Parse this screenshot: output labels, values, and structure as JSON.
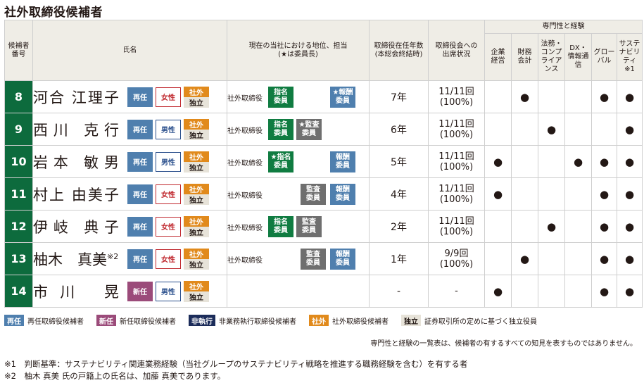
{
  "title": "社外取締役候補者",
  "headers": {
    "number": "候補者\n番号",
    "name": "氏名",
    "position": "現在の当社における地位、担当\n(★は委員長)",
    "years": "取締役在任年数\n(本総会終結時)",
    "attendance": "取締役会への\n出席状況",
    "expertise_title": "専門性と経験",
    "expertise": [
      "企業\n経営",
      "財務\n会計",
      "法務・\nコンプ\nライア\nンス",
      "DX・\n情報通信",
      "グロー\nバル",
      "サステ\nナビリ\nティ\n※1"
    ]
  },
  "candidates": [
    {
      "no": "8",
      "name": "河合　江理子",
      "sup": "",
      "tenure": "再任",
      "gender": "女性",
      "gender_type": "female",
      "tag_top": "社外",
      "tag_bottom": "独立",
      "position": "社外取締役",
      "committee_a": "指名\n委員",
      "committee_a_style": "green",
      "committee_b": "★報酬\n委員",
      "committee_b_style": "blue",
      "years": "7年",
      "attendance": "11/11回\n(100%)",
      "exp": [
        "",
        "●",
        "",
        "",
        "●",
        "●"
      ]
    },
    {
      "no": "9",
      "name": "西川　克行",
      "sup": "",
      "tenure": "再任",
      "gender": "男性",
      "gender_type": "male",
      "tag_top": "社外",
      "tag_bottom": "独立",
      "position": "社外取締役",
      "committee_a": "指名\n委員",
      "committee_a_style": "green",
      "committee_b": "★監査\n委員",
      "committee_b_style": "gray",
      "years": "6年",
      "attendance": "11/11回\n(100%)",
      "exp": [
        "",
        "",
        "●",
        "",
        "",
        "●"
      ]
    },
    {
      "no": "10",
      "name": "岩本　敏男",
      "sup": "",
      "tenure": "再任",
      "gender": "男性",
      "gender_type": "male",
      "tag_top": "社外",
      "tag_bottom": "独立",
      "position": "社外取締役",
      "committee_a": "★指名\n委員",
      "committee_a_style": "green",
      "committee_b": "報酬\n委員",
      "committee_b_style": "blue",
      "years": "5年",
      "attendance": "11/11回\n(100%)",
      "exp": [
        "●",
        "",
        "",
        "●",
        "●",
        "●"
      ]
    },
    {
      "no": "11",
      "name": "村上　由美子",
      "sup": "",
      "tenure": "再任",
      "gender": "女性",
      "gender_type": "female",
      "tag_top": "社外",
      "tag_bottom": "独立",
      "position": "社外取締役",
      "committee_a": "監査\n委員",
      "committee_a_style": "gray",
      "committee_b": "報酬\n委員",
      "committee_b_style": "blue",
      "years": "4年",
      "attendance": "11/11回\n(100%)",
      "exp": [
        "●",
        "",
        "",
        "",
        "●",
        "●"
      ]
    },
    {
      "no": "12",
      "name": "伊岐　典子",
      "sup": "",
      "tenure": "再任",
      "gender": "女性",
      "gender_type": "female",
      "tag_top": "社外",
      "tag_bottom": "独立",
      "position": "社外取締役",
      "committee_a": "指名\n委員",
      "committee_a_style": "green",
      "committee_b": "監査\n委員",
      "committee_b_style": "gray",
      "years": "2年",
      "attendance": "11/11回\n(100%)",
      "exp": [
        "",
        "",
        "●",
        "",
        "●",
        "●"
      ]
    },
    {
      "no": "13",
      "name": "柚木　真美",
      "sup": "※2",
      "tenure": "再任",
      "gender": "女性",
      "gender_type": "female",
      "tag_top": "社外",
      "tag_bottom": "独立",
      "position": "社外取締役",
      "committee_a": "監査\n委員",
      "committee_a_style": "gray",
      "committee_b": "報酬\n委員",
      "committee_b_style": "blue",
      "years": "1年",
      "attendance": "9/9回\n(100%)",
      "exp": [
        "",
        "●",
        "",
        "",
        "●",
        "●"
      ]
    },
    {
      "no": "14",
      "name": "市川　晃",
      "sup": "",
      "tenure": "新任",
      "gender": "男性",
      "gender_type": "male",
      "tag_top": "社外",
      "tag_bottom": "独立",
      "position": "",
      "committee_a": "",
      "committee_a_style": "",
      "committee_b": "",
      "committee_b_style": "",
      "years": "-",
      "attendance": "-",
      "exp": [
        "●",
        "",
        "",
        "",
        "●",
        "●"
      ]
    }
  ],
  "legend": [
    {
      "key": "再任",
      "style": "saonin",
      "desc": "再任取締役候補者"
    },
    {
      "key": "新任",
      "style": "shinin",
      "desc": "新任取締役候補者"
    },
    {
      "key": "非執行",
      "style": "hishikko",
      "desc": "非業務執行取締役候補者"
    },
    {
      "key": "社外",
      "style": "shagai",
      "desc": "社外取締役候補者"
    },
    {
      "key": "独立",
      "style": "dokuritsu",
      "desc": "証券取引所の定めに基づく独立役員"
    }
  ],
  "legend_note": "専門性と経験の一覧表は、候補者の有するすべての知見を表すものではありません。",
  "footnotes": [
    "※1　判断基準：サステナビリティ関連業務経験（当社グループのサステナビリティ戦略を推進する職務経験を含む）を有する者",
    "※2　柚木 真美 氏の戸籍上の氏名は、加藤 真美であります。"
  ]
}
